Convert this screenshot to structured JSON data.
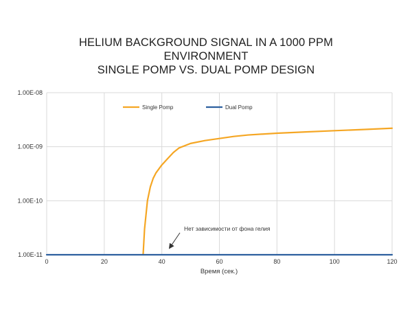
{
  "chart_data": {
    "type": "line",
    "title_lines": [
      "HELIUM BACKGROUND SIGNAL IN A 1000 PPM",
      "ENVIRONMENT",
      "SINGLE POMP VS. DUAL POMP DESIGN"
    ],
    "xlabel": "Время (сек.)",
    "ylabel": "",
    "xlim": [
      0,
      120
    ],
    "ylim": [
      1e-11,
      1e-08
    ],
    "y_scale": "log",
    "x_ticks": [
      0,
      20,
      40,
      60,
      80,
      100,
      120
    ],
    "x_tick_labels": [
      "0",
      "20",
      "40",
      "60",
      "80",
      "100",
      "120"
    ],
    "y_ticks": [
      1e-11,
      1e-10,
      1e-09,
      1e-08
    ],
    "y_tick_labels": [
      "1.00E-11",
      "1.00E-10",
      "1.00E-09",
      "1.00E-08"
    ],
    "grid": true,
    "legend_position": "top",
    "series": [
      {
        "name": "Single Pomp",
        "color": "#f5a623",
        "x": [
          33.5,
          34,
          35,
          36,
          37,
          38,
          40,
          42,
          44,
          46,
          50,
          55,
          60,
          65,
          70,
          80,
          90,
          100,
          110,
          120
        ],
        "y": [
          1e-11,
          3e-11,
          1e-10,
          1.8e-10,
          2.6e-10,
          3.3e-10,
          4.6e-10,
          6e-10,
          7.8e-10,
          9.5e-10,
          1.15e-09,
          1.3e-09,
          1.42e-09,
          1.55e-09,
          1.65e-09,
          1.78e-09,
          1.88e-09,
          1.98e-09,
          2.08e-09,
          2.2e-09
        ]
      },
      {
        "name": "Dual Pomp",
        "color": "#2c5f9e",
        "x": [
          0,
          120
        ],
        "y": [
          1e-11,
          1e-11
        ]
      }
    ],
    "annotations": [
      {
        "text": "Нет зависимости от фона гелия",
        "arrow_to": {
          "x": 42,
          "y": 1e-11
        }
      }
    ]
  }
}
